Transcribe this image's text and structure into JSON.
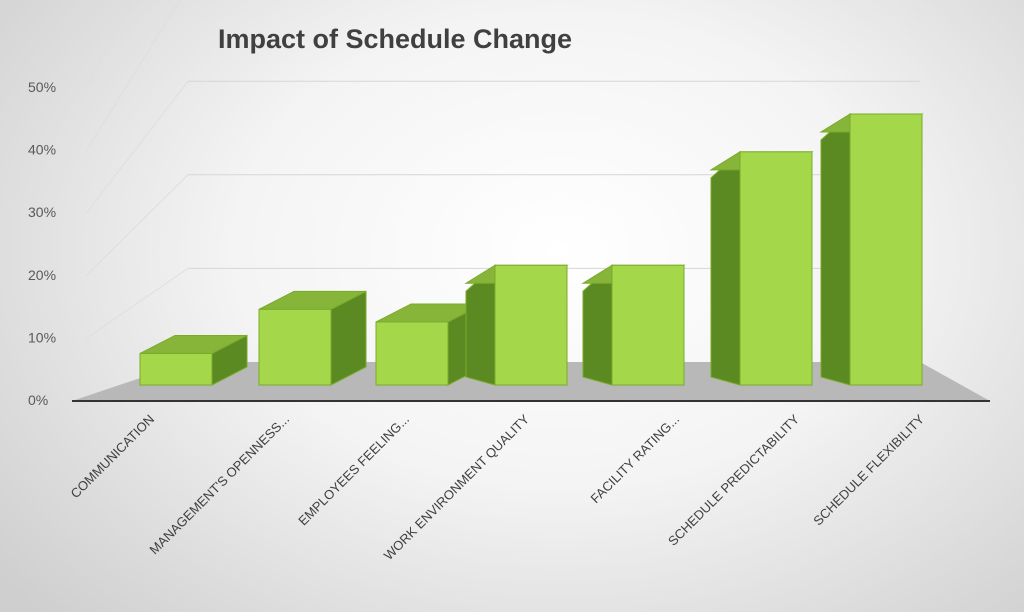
{
  "chart_data": {
    "type": "bar",
    "title": "Impact of Schedule Change",
    "xlabel": "",
    "ylabel": "",
    "ylim": [
      0,
      50
    ],
    "y_ticks": [
      "0%",
      "10%",
      "20%",
      "30%",
      "40%",
      "50%"
    ],
    "categories": [
      "COMMUNICATION",
      "MANAGEMENT'S OPENNESS...",
      "EMPLOYEES FEELING...",
      "WORK ENVIRONMENT QUALITY",
      "FACILITY RATING...",
      "SCHEDULE PREDICTABILITY",
      "SCHEDULE FLEXIBILITY"
    ],
    "values": [
      5,
      12,
      10,
      19,
      19,
      37,
      43
    ],
    "grid": true,
    "legend": "none",
    "colors": {
      "bar_front": "#a4d84a",
      "bar_side": "#5c8a22",
      "bar_top": "#86b53a",
      "bar_edge": "#7aab2a",
      "floor": "#b8b8b8"
    }
  }
}
